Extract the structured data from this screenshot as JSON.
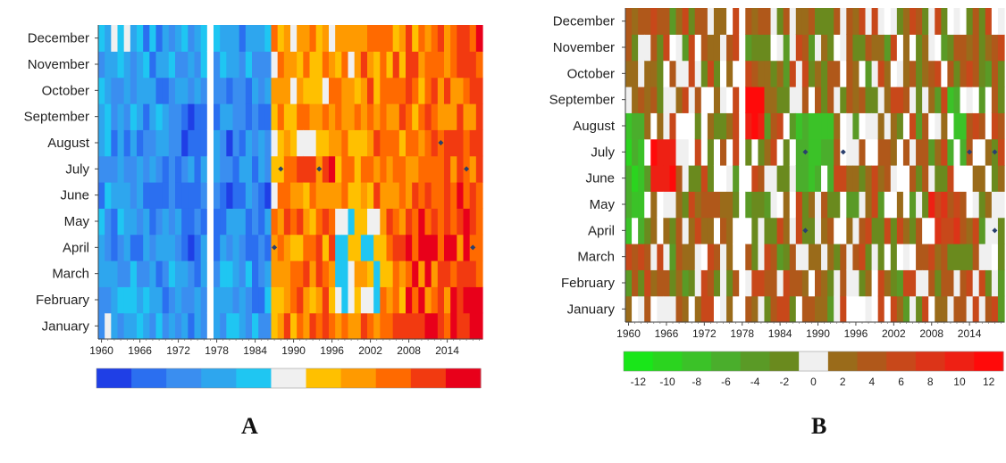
{
  "panels": [
    {
      "label": "A"
    },
    {
      "label": "B"
    }
  ],
  "chart_data": [
    {
      "type": "heatmap",
      "panel": "A",
      "y_categories": [
        "January",
        "February",
        "March",
        "April",
        "May",
        "June",
        "July",
        "August",
        "September",
        "October",
        "November",
        "December"
      ],
      "x_ticks": [
        1960,
        1966,
        1972,
        1978,
        1984,
        1990,
        1996,
        2002,
        2008,
        2014
      ],
      "x_range": [
        1960,
        2019
      ],
      "missing_years": [
        1977
      ],
      "colorbar": {
        "ticks": [
          -5,
          -4,
          -3,
          -2,
          -1,
          0,
          1,
          2,
          3,
          4,
          5
        ],
        "colors": [
          "#1f3fe6",
          "#2b6ff0",
          "#3a8ef0",
          "#2ea6ee",
          "#1fc6f2",
          "#f0f0f0",
          "#ffc000",
          "#ff9a00",
          "#ff6a00",
          "#f23a10",
          "#e8001a"
        ]
      },
      "markers": [
        {
          "year": 1988,
          "month": "July"
        },
        {
          "year": 1994,
          "month": "July"
        },
        {
          "year": 1987,
          "month": "April"
        },
        {
          "year": 2013,
          "month": "August"
        },
        {
          "year": 2017,
          "month": "July"
        },
        {
          "year": 2018,
          "month": "April"
        }
      ],
      "pattern_notes": "negative (blue) anomalies dominate 1960-1986; positive (yellow-red) anomalies dominate after 1988, strongest 2008-2018"
    },
    {
      "type": "heatmap",
      "panel": "B",
      "y_categories": [
        "January",
        "February",
        "March",
        "April",
        "May",
        "June",
        "July",
        "August",
        "September",
        "October",
        "November",
        "December"
      ],
      "x_ticks": [
        1960,
        1966,
        1972,
        1978,
        1984,
        1990,
        1996,
        2002,
        2008,
        2014
      ],
      "x_range": [
        1960,
        2019
      ],
      "missing_years": [
        1978
      ],
      "colorbar": {
        "ticks": [
          -12,
          -10,
          -8,
          -6,
          -4,
          -2,
          0,
          2,
          4,
          6,
          8,
          10,
          12
        ],
        "colors": [
          "#19e619",
          "#2bd41f",
          "#3bc228",
          "#4aae2c",
          "#5a9a26",
          "#6a8a1e",
          "#f0f0f0",
          "#9a6b1a",
          "#b0581a",
          "#c8481a",
          "#dc3418",
          "#ee2014",
          "#ff0a0a"
        ]
      },
      "markers": [
        {
          "year": 1988,
          "month": "July"
        },
        {
          "year": 1994,
          "month": "July"
        },
        {
          "year": 1988,
          "month": "April"
        },
        {
          "year": 2014,
          "month": "July"
        },
        {
          "year": 2018,
          "month": "April"
        },
        {
          "year": 2018,
          "month": "July"
        }
      ],
      "pattern_notes": "olive/brown cells dominate with scattered white (near zero) cells; green (negative) clusters 1960s and 1990s; red (positive) hot spots 1965-1967 July, 1979-1981 August"
    }
  ]
}
